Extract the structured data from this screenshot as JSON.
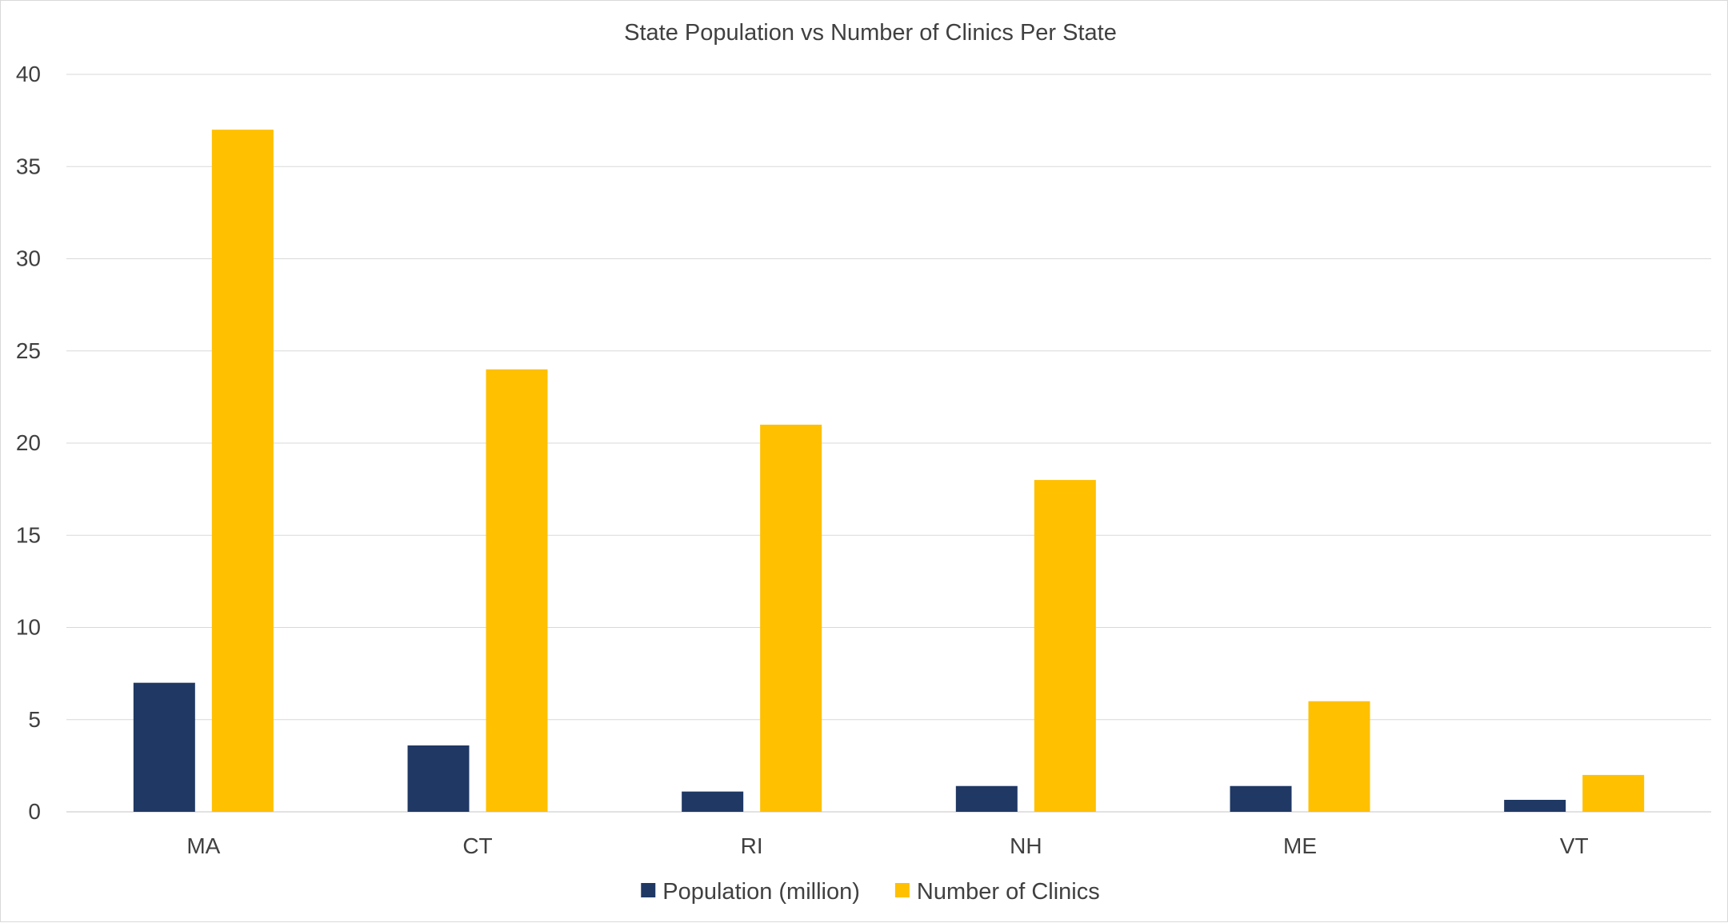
{
  "chart_data": {
    "type": "bar",
    "title": "State Population vs Number of Clinics Per State",
    "xlabel": "",
    "ylabel": "",
    "categories": [
      "MA",
      "CT",
      "RI",
      "NH",
      "ME",
      "VT"
    ],
    "series": [
      {
        "name": "Population (million)",
        "color": "#1f3864",
        "values": [
          7.0,
          3.6,
          1.1,
          1.4,
          1.4,
          0.65
        ]
      },
      {
        "name": "Number of Clinics",
        "color": "#ffc000",
        "values": [
          37,
          24,
          21,
          18,
          6,
          2
        ]
      }
    ],
    "ylim": [
      0,
      40
    ],
    "yticks": [
      "0",
      "5",
      "10",
      "15",
      "20",
      "25",
      "30",
      "35",
      "40"
    ],
    "grid": true,
    "legend_position": "bottom"
  }
}
